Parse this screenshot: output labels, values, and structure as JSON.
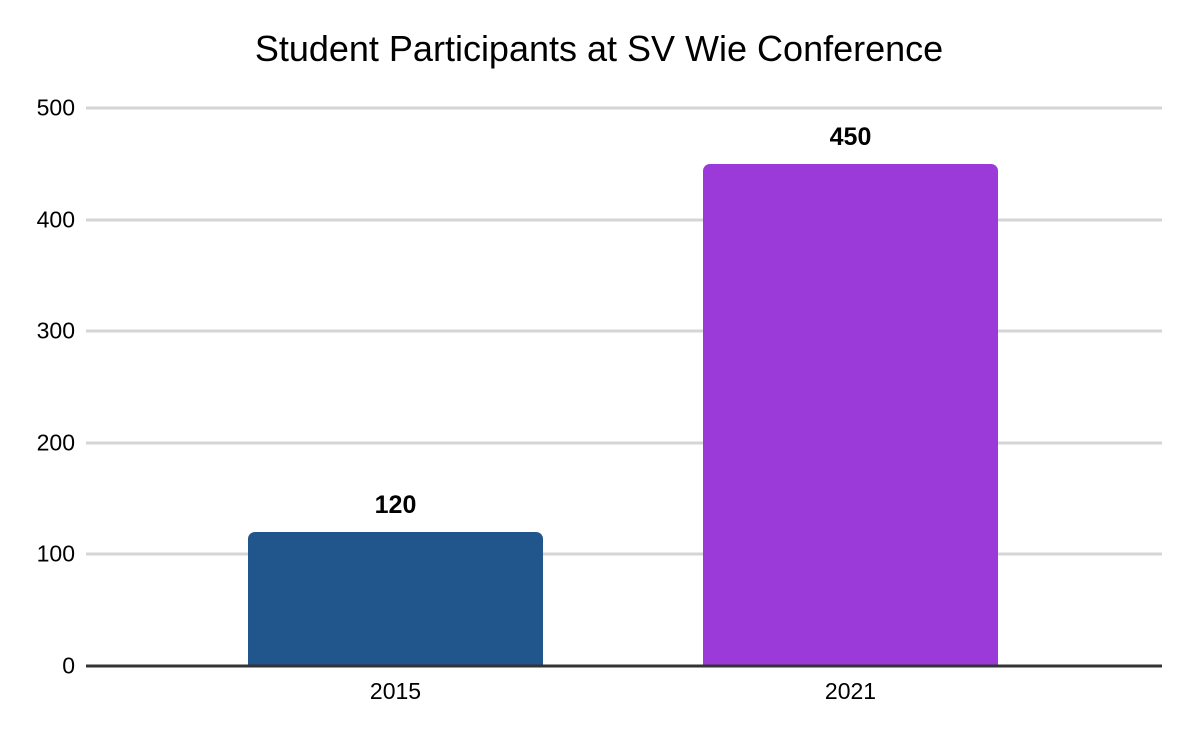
{
  "page": {
    "background": "#ffffff"
  },
  "chart_data": {
    "type": "bar",
    "title": "Student Participants at SV Wie Conference",
    "categories": [
      "2015",
      "2021"
    ],
    "values": [
      120,
      450
    ],
    "bar_colors": [
      "#21568c",
      "#9b3ad9"
    ],
    "value_labels": [
      "120",
      "450"
    ],
    "yticks": [
      0,
      100,
      200,
      300,
      400,
      500
    ],
    "ylim": [
      0,
      500
    ],
    "xlabel": "",
    "ylabel": "",
    "grid": "horizontal",
    "gridline_color": "#d5d5d5",
    "axis_line_color": "#333333",
    "legend_position": "none",
    "title_color": "#000000",
    "label_color": "#000000"
  }
}
